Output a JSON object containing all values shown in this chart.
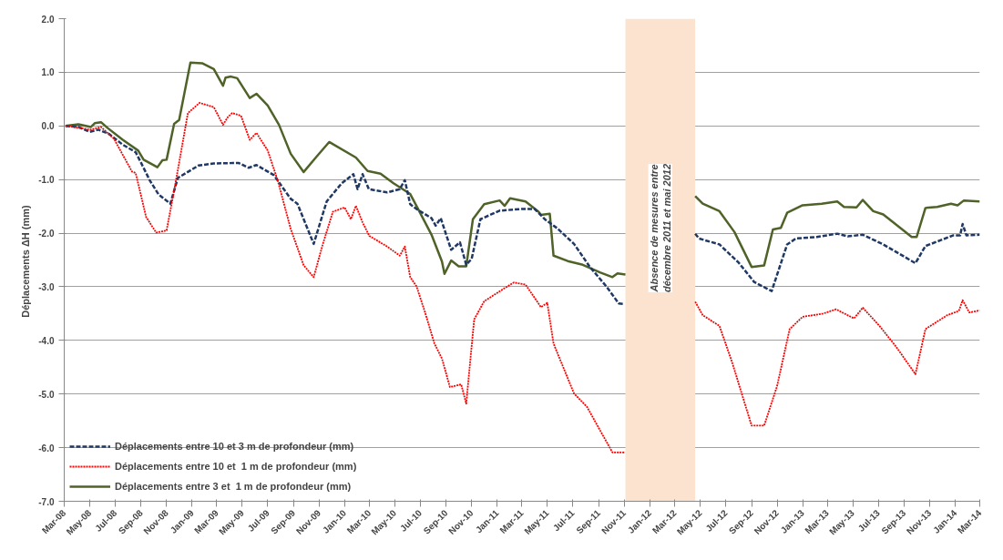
{
  "chart_data": {
    "type": "line",
    "ylabel": "Déplacements  ΔH (mm)",
    "xlim": [
      "2008-03",
      "2014-03"
    ],
    "xticks": [
      {
        "value": "2008-03",
        "label": "Mar-08"
      },
      {
        "value": "2008-05",
        "label": "May-08"
      },
      {
        "value": "2008-07",
        "label": "Jul-08"
      },
      {
        "value": "2008-09",
        "label": "Sep-08"
      },
      {
        "value": "2008-11",
        "label": "Nov-08"
      },
      {
        "value": "2009-01",
        "label": "Jan-09"
      },
      {
        "value": "2009-03",
        "label": "Mar-09"
      },
      {
        "value": "2009-05",
        "label": "May-09"
      },
      {
        "value": "2009-07",
        "label": "Jul-09"
      },
      {
        "value": "2009-09",
        "label": "Sep-09"
      },
      {
        "value": "2009-11",
        "label": "Nov-09"
      },
      {
        "value": "2010-01",
        "label": "Jan-10"
      },
      {
        "value": "2010-03",
        "label": "Mar-10"
      },
      {
        "value": "2010-05",
        "label": "May-10"
      },
      {
        "value": "2010-07",
        "label": "Jul-10"
      },
      {
        "value": "2010-09",
        "label": "Sep-10"
      },
      {
        "value": "2010-11",
        "label": "Nov-10"
      },
      {
        "value": "2011-01",
        "label": "Jan-11"
      },
      {
        "value": "2011-03",
        "label": "Mar-11"
      },
      {
        "value": "2011-05",
        "label": "May-11"
      },
      {
        "value": "2011-07",
        "label": "Jul-11"
      },
      {
        "value": "2011-09",
        "label": "Sep-11"
      },
      {
        "value": "2011-11",
        "label": "Nov-11"
      },
      {
        "value": "2012-01",
        "label": "Jan-12"
      },
      {
        "value": "2012-03",
        "label": "Mar-12"
      },
      {
        "value": "2012-05",
        "label": "May-12"
      },
      {
        "value": "2012-07",
        "label": "Jul-12"
      },
      {
        "value": "2012-09",
        "label": "Sep-12"
      },
      {
        "value": "2012-11",
        "label": "Nov-12"
      },
      {
        "value": "2013-01",
        "label": "Jan-13"
      },
      {
        "value": "2013-03",
        "label": "Mar-13"
      },
      {
        "value": "2013-05",
        "label": "May-13"
      },
      {
        "value": "2013-07",
        "label": "Jul-13"
      },
      {
        "value": "2013-09",
        "label": "Sep-13"
      },
      {
        "value": "2013-11",
        "label": "Nov-13"
      },
      {
        "value": "2014-01",
        "label": "Jan-14"
      },
      {
        "value": "2014-03",
        "label": "Mar-14"
      }
    ],
    "ylim": [
      -7,
      2
    ],
    "yticks": [
      {
        "value": 2,
        "label": "2.0"
      },
      {
        "value": 1,
        "label": "1.0"
      },
      {
        "value": 0,
        "label": "0.0"
      },
      {
        "value": -1,
        "label": "-1.0"
      },
      {
        "value": -2,
        "label": "-2.0"
      },
      {
        "value": -3,
        "label": "-3.0"
      },
      {
        "value": -4,
        "label": "-4.0"
      },
      {
        "value": -5,
        "label": "-5.0"
      },
      {
        "value": -6,
        "label": "-6.0"
      },
      {
        "value": -7,
        "label": "-7.0"
      }
    ],
    "grid": "y",
    "legend": "bottom left",
    "bands": [
      {
        "axis": "x",
        "from": "2011-11-04",
        "to": "2012-04-19",
        "label": "Absence de mesures entre décembre 2011 et mai 2012",
        "color": "#fbe3cf"
      }
    ],
    "series": [
      {
        "name": "Déplacements entre 10 et 3 m de profondeur (mm)",
        "color": "#1f3864",
        "line_style": "dashed",
        "x": [
          "2008-03-04",
          "2008-04-04",
          "2008-05-01",
          "2008-05-22",
          "2008-06-16",
          "2008-07-19",
          "2008-08-19",
          "2008-09-01",
          "2008-09-22",
          "2008-10-13",
          "2008-11-10",
          "2008-11-28",
          "2009-01-16",
          "2009-02-22",
          "2009-04-22",
          "2009-05-16",
          "2009-06-04",
          "2009-07-16",
          "2009-08-25",
          "2009-09-10",
          "2009-10-19",
          "2009-11-19",
          "2009-12-25",
          "2010-01-22",
          "2010-02-01",
          "2010-02-13",
          "2010-02-28",
          "2010-04-13",
          "2010-05-13",
          "2010-05-25",
          "2010-06-07",
          "2010-06-22",
          "2010-07-28",
          "2010-08-07",
          "2010-08-19",
          "2010-09-13",
          "2010-10-04",
          "2010-10-19",
          "2010-11-01",
          "2010-11-22",
          "2011-01-07",
          "2011-03-01",
          "2011-04-01",
          "2011-04-25",
          "2011-05-25",
          "2011-07-04",
          "2011-08-10",
          "2011-09-19",
          "2011-10-19",
          "2011-11-01",
          "2012-01-25",
          "2012-04-19",
          "2012-04-28",
          "2012-06-16",
          "2012-08-01",
          "2012-09-07",
          "2012-10-19",
          "2012-11-25",
          "2012-12-16",
          "2013-02-04",
          "2013-03-25",
          "2013-04-19",
          "2013-05-25",
          "2013-07-13",
          "2013-09-28",
          "2013-10-22",
          "2013-12-28",
          "2014-01-13",
          "2014-01-19",
          "2014-01-28",
          "2014-03-01"
        ],
        "values": [
          0,
          -0.02,
          -0.11,
          -0.07,
          -0.15,
          -0.35,
          -0.49,
          -0.69,
          -1.02,
          -1.28,
          -1.45,
          -0.97,
          -0.74,
          -0.7,
          -0.69,
          -0.78,
          -0.73,
          -0.92,
          -1.36,
          -1.45,
          -2.2,
          -1.41,
          -1.07,
          -0.9,
          -1.18,
          -0.9,
          -1.18,
          -1.24,
          -1.18,
          -1.01,
          -1.46,
          -1.55,
          -1.72,
          -1.86,
          -1.72,
          -2.31,
          -2.17,
          -2.59,
          -2.48,
          -1.74,
          -1.58,
          -1.55,
          -1.55,
          -1.74,
          -1.91,
          -2.2,
          -2.62,
          -2.99,
          -3.31,
          -3.32,
          null,
          -2.01,
          -2.1,
          -2.21,
          -2.55,
          -2.91,
          -3.08,
          -2.21,
          -2.1,
          -2.07,
          -2.01,
          -2.06,
          -2.03,
          -2.21,
          -2.56,
          -2.24,
          -2.04,
          -2.04,
          -1.83,
          -2.04,
          -2.03
        ]
      },
      {
        "name": "Déplacements entre 10 et  1 m de profondeur (mm)",
        "color": "#ff0000",
        "line_style": "dotted",
        "x": [
          "2008-03-04",
          "2008-05-04",
          "2008-05-28",
          "2008-06-28",
          "2008-08-10",
          "2008-08-19",
          "2008-09-13",
          "2008-10-07",
          "2008-11-01",
          "2008-11-22",
          "2008-12-22",
          "2009-01-19",
          "2009-02-22",
          "2009-03-16",
          "2009-03-28",
          "2009-04-07",
          "2009-04-28",
          "2009-05-19",
          "2009-06-04",
          "2009-07-01",
          "2009-07-25",
          "2009-08-25",
          "2009-09-25",
          "2009-10-19",
          "2009-11-10",
          "2009-12-04",
          "2010-01-01",
          "2010-01-16",
          "2010-01-28",
          "2010-02-13",
          "2010-03-01",
          "2010-04-13",
          "2010-05-13",
          "2010-05-25",
          "2010-06-07",
          "2010-06-22",
          "2010-07-13",
          "2010-08-04",
          "2010-08-22",
          "2010-09-10",
          "2010-10-07",
          "2010-10-19",
          "2010-11-07",
          "2010-12-01",
          "2011-01-16",
          "2011-02-10",
          "2011-03-10",
          "2011-04-16",
          "2011-05-01",
          "2011-05-16",
          "2011-07-04",
          "2011-08-04",
          "2011-10-04",
          "2011-11-01",
          "2012-01-25",
          "2012-04-19",
          "2012-05-07",
          "2012-06-16",
          "2012-07-16",
          "2012-09-01",
          "2012-10-01",
          "2012-11-01",
          "2012-12-01",
          "2013-01-01",
          "2013-02-19",
          "2013-03-22",
          "2013-05-04",
          "2013-05-25",
          "2013-07-04",
          "2013-08-13",
          "2013-09-28",
          "2013-10-22",
          "2013-12-13",
          "2014-01-10",
          "2014-01-19",
          "2014-02-04",
          "2014-03-01"
        ],
        "values": [
          0,
          -0.07,
          -0.02,
          -0.24,
          -0.85,
          -0.88,
          -1.7,
          -1.99,
          -1.95,
          -1.08,
          0.24,
          0.43,
          0.35,
          0.02,
          0.17,
          0.24,
          0.19,
          -0.26,
          -0.13,
          -0.46,
          -1.02,
          -1.92,
          -2.6,
          -2.82,
          -2.2,
          -1.6,
          -1.52,
          -1.74,
          -1.49,
          -1.8,
          -2.05,
          -2.25,
          -2.42,
          -2.25,
          -2.82,
          -2.99,
          -3.49,
          -4.06,
          -4.34,
          -4.87,
          -4.82,
          -5.18,
          -3.61,
          -3.27,
          -3.04,
          -2.92,
          -2.96,
          -3.38,
          -3.3,
          -4.06,
          -4.99,
          -5.24,
          -6.09,
          -6.09,
          null,
          -3.28,
          -3.53,
          -3.73,
          -4.4,
          -5.59,
          -5.59,
          -4.85,
          -3.79,
          -3.56,
          -3.5,
          -3.42,
          -3.59,
          -3.39,
          -3.73,
          -4.12,
          -4.63,
          -3.79,
          -3.53,
          -3.45,
          -3.25,
          -3.48,
          -3.44
        ]
      },
      {
        "name": "Déplacements entre 3 et  1 m de profondeur (mm)",
        "color": "#4f6228",
        "line_style": "solid",
        "x": [
          "2008-03-04",
          "2008-04-04",
          "2008-05-04",
          "2008-05-13",
          "2008-05-28",
          "2008-06-13",
          "2008-07-19",
          "2008-08-25",
          "2008-09-07",
          "2008-10-10",
          "2008-10-22",
          "2008-11-01",
          "2008-11-19",
          "2008-12-01",
          "2008-12-28",
          "2009-01-25",
          "2009-02-22",
          "2009-03-16",
          "2009-03-22",
          "2009-04-04",
          "2009-04-19",
          "2009-05-19",
          "2009-06-04",
          "2009-07-01",
          "2009-07-28",
          "2009-08-25",
          "2009-09-25",
          "2009-10-25",
          "2009-11-25",
          "2010-01-28",
          "2010-02-25",
          "2010-03-28",
          "2010-04-28",
          "2010-06-07",
          "2010-06-28",
          "2010-07-28",
          "2010-08-22",
          "2010-08-28",
          "2010-09-13",
          "2010-10-01",
          "2010-10-19",
          "2010-11-04",
          "2010-12-01",
          "2011-01-07",
          "2011-01-19",
          "2011-02-01",
          "2011-03-10",
          "2011-04-10",
          "2011-04-16",
          "2011-05-07",
          "2011-05-16",
          "2011-06-19",
          "2011-07-25",
          "2011-09-04",
          "2011-10-04",
          "2011-10-16",
          "2011-11-04",
          "2012-01-25",
          "2012-04-19",
          "2012-05-07",
          "2012-06-16",
          "2012-07-22",
          "2012-09-01",
          "2012-10-01",
          "2012-10-22",
          "2012-11-10",
          "2012-11-25",
          "2013-01-01",
          "2013-02-16",
          "2013-03-25",
          "2013-04-10",
          "2013-05-10",
          "2013-05-25",
          "2013-06-19",
          "2013-07-13",
          "2013-09-19",
          "2013-10-01",
          "2013-10-22",
          "2013-11-19",
          "2013-12-22",
          "2014-01-07",
          "2014-01-22",
          "2014-03-01"
        ],
        "values": [
          0,
          0.03,
          -0.02,
          0.05,
          0.07,
          -0.04,
          -0.26,
          -0.46,
          -0.63,
          -0.77,
          -0.64,
          -0.63,
          0.04,
          0.11,
          1.18,
          1.17,
          1.06,
          0.75,
          0.9,
          0.92,
          0.89,
          0.52,
          0.6,
          0.38,
          0.02,
          -0.52,
          -0.86,
          -0.58,
          -0.3,
          -0.59,
          -0.84,
          -0.89,
          -1.07,
          -1.27,
          -1.58,
          -2.03,
          -2.53,
          -2.76,
          -2.51,
          -2.62,
          -2.62,
          -1.74,
          -1.46,
          -1.39,
          -1.49,
          -1.35,
          -1.41,
          -1.6,
          -1.66,
          -1.64,
          -2.42,
          -2.52,
          -2.59,
          -2.73,
          -2.82,
          -2.75,
          -2.77,
          null,
          -1.31,
          -1.45,
          -1.59,
          -1.98,
          -2.63,
          -2.6,
          -1.93,
          -1.9,
          -1.62,
          -1.48,
          -1.45,
          -1.41,
          -1.51,
          -1.52,
          -1.38,
          -1.59,
          -1.65,
          -2.07,
          -2.07,
          -1.53,
          -1.51,
          -1.45,
          -1.48,
          -1.39,
          -1.41
        ]
      }
    ]
  }
}
